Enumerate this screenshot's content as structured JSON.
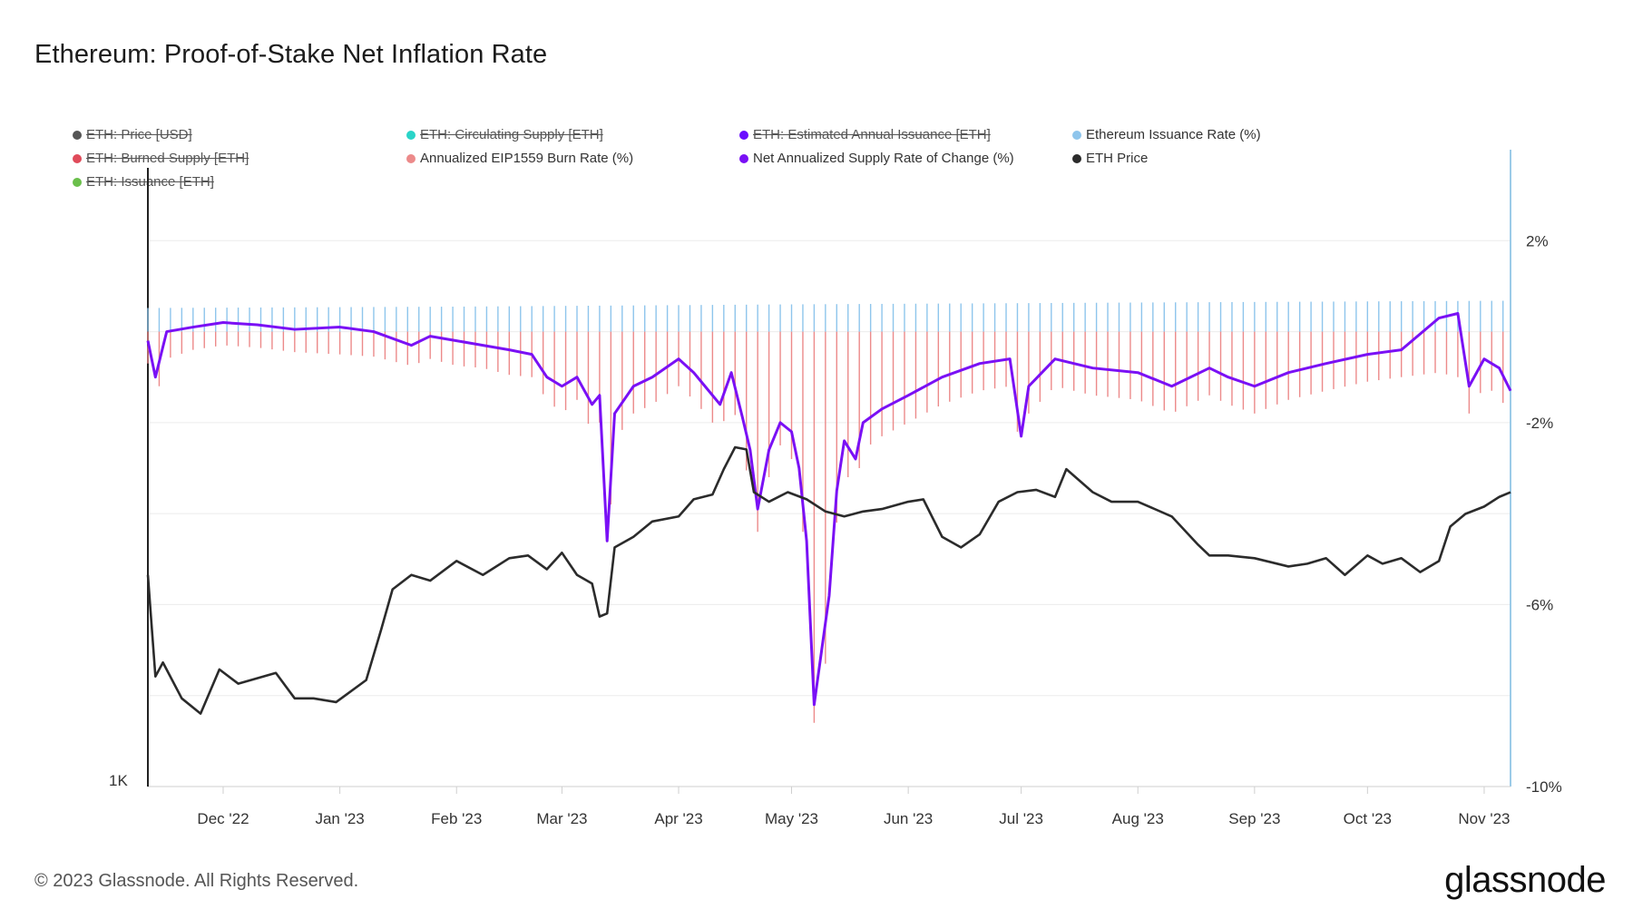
{
  "title": "Ethereum: Proof-of-Stake Net Inflation Rate",
  "footer": "© 2023 Glassnode. All Rights Reserved.",
  "brand": "glassnode",
  "legend": [
    {
      "label": "ETH: Price [USD]",
      "color": "#555555",
      "disabled": true
    },
    {
      "label": "ETH: Circulating Supply [ETH]",
      "color": "#2ad4c8",
      "disabled": true
    },
    {
      "label": "ETH: Estimated Annual Issuance [ETH]",
      "color": "#6a0dff",
      "disabled": true
    },
    {
      "label": "Ethereum Issuance Rate (%)",
      "color": "#8ec5ec",
      "disabled": false
    },
    {
      "label": "ETH: Burned Supply [ETH]",
      "color": "#e04b5a",
      "disabled": true
    },
    {
      "label": "Annualized EIP1559 Burn Rate (%)",
      "color": "#ec8a8a",
      "disabled": false
    },
    {
      "label": "Net Annualized Supply Rate of Change (%)",
      "color": "#7a10f5",
      "disabled": false
    },
    {
      "label": "ETH Price",
      "color": "#2b2b2b",
      "disabled": false
    },
    {
      "label": "ETH: Issuance [ETH]",
      "color": "#6abf4b",
      "disabled": true
    }
  ],
  "chart_data": {
    "type": "line",
    "x_tick_labels": [
      "Dec '22",
      "Jan '23",
      "Feb '23",
      "Mar '23",
      "Apr '23",
      "May '23",
      "Jun '23",
      "Jul '23",
      "Aug '23",
      "Sep '23",
      "Oct '23",
      "Nov '23"
    ],
    "x_range": [
      "2022-11-11",
      "2023-11-08"
    ],
    "y_right_tick_labels": [
      "2%",
      "-2%",
      "-6%",
      "-10%"
    ],
    "y_right_range": [
      -10,
      4
    ],
    "y_left_tick_labels": [
      "1K"
    ],
    "grid": true,
    "series": [
      {
        "name": "Ethereum Issuance Rate (%)",
        "type": "bar",
        "color": "#8ec5ec",
        "x": [
          "2022-11-11",
          "2023-02-01",
          "2023-05-01",
          "2023-08-01",
          "2023-11-08"
        ],
        "values": [
          0.52,
          0.55,
          0.6,
          0.64,
          0.68
        ]
      },
      {
        "name": "Annualized EIP1559 Burn Rate (%)",
        "type": "bar",
        "color": "#ec8a8a",
        "x": [
          "2022-11-11",
          "2022-11-13",
          "2022-11-16",
          "2022-11-23",
          "2022-12-01",
          "2022-12-10",
          "2022-12-20",
          "2023-01-01",
          "2023-01-10",
          "2023-01-20",
          "2023-01-25",
          "2023-02-01",
          "2023-02-08",
          "2023-02-15",
          "2023-02-21",
          "2023-02-25",
          "2023-03-01",
          "2023-03-05",
          "2023-03-09",
          "2023-03-11",
          "2023-03-13",
          "2023-03-15",
          "2023-03-20",
          "2023-03-25",
          "2023-04-01",
          "2023-04-05",
          "2023-04-08",
          "2023-04-12",
          "2023-04-15",
          "2023-04-18",
          "2023-04-20",
          "2023-04-22",
          "2023-04-25",
          "2023-04-28",
          "2023-05-01",
          "2023-05-03",
          "2023-05-05",
          "2023-05-07",
          "2023-05-09",
          "2023-05-11",
          "2023-05-13",
          "2023-05-15",
          "2023-05-18",
          "2023-05-20",
          "2023-05-25",
          "2023-06-01",
          "2023-06-10",
          "2023-06-20",
          "2023-06-28",
          "2023-07-01",
          "2023-07-03",
          "2023-07-10",
          "2023-07-20",
          "2023-08-01",
          "2023-08-10",
          "2023-08-20",
          "2023-08-25",
          "2023-09-01",
          "2023-09-10",
          "2023-09-20",
          "2023-10-01",
          "2023-10-10",
          "2023-10-20",
          "2023-10-25",
          "2023-10-28",
          "2023-11-01",
          "2023-11-05",
          "2023-11-08"
        ],
        "values": [
          -0.7,
          -1.5,
          -0.6,
          -0.4,
          -0.3,
          -0.35,
          -0.45,
          -0.5,
          -0.55,
          -0.75,
          -0.6,
          -0.75,
          -0.8,
          -0.95,
          -1.0,
          -1.5,
          -1.8,
          -1.5,
          -2.2,
          -2.0,
          -5.2,
          -2.4,
          -1.8,
          -1.6,
          -1.2,
          -1.5,
          -1.8,
          -2.2,
          -1.5,
          -2.5,
          -3.6,
          -4.4,
          -3.2,
          -2.5,
          -2.8,
          -3.5,
          -5.3,
          -8.6,
          -7.8,
          -6.8,
          -4.2,
          -3.1,
          -3.4,
          -2.6,
          -2.3,
          -2.0,
          -1.6,
          -1.3,
          -1.2,
          -2.7,
          -1.8,
          -1.2,
          -1.4,
          -1.5,
          -1.8,
          -1.4,
          -1.6,
          -1.8,
          -1.5,
          -1.3,
          -1.1,
          -1.0,
          -0.9,
          -1.0,
          -1.8,
          -1.2,
          -1.4,
          -1.9
        ]
      },
      {
        "name": "Net Annualized Supply Rate of Change (%)",
        "type": "line",
        "color": "#7a10f5",
        "x": [
          "2022-11-11",
          "2022-11-13",
          "2022-11-16",
          "2022-11-23",
          "2022-12-01",
          "2022-12-10",
          "2022-12-20",
          "2023-01-01",
          "2023-01-10",
          "2023-01-20",
          "2023-01-25",
          "2023-02-01",
          "2023-02-08",
          "2023-02-15",
          "2023-02-21",
          "2023-02-25",
          "2023-03-01",
          "2023-03-05",
          "2023-03-09",
          "2023-03-11",
          "2023-03-13",
          "2023-03-15",
          "2023-03-20",
          "2023-03-25",
          "2023-04-01",
          "2023-04-05",
          "2023-04-08",
          "2023-04-12",
          "2023-04-15",
          "2023-04-18",
          "2023-04-20",
          "2023-04-22",
          "2023-04-25",
          "2023-04-28",
          "2023-05-01",
          "2023-05-03",
          "2023-05-05",
          "2023-05-07",
          "2023-05-09",
          "2023-05-11",
          "2023-05-13",
          "2023-05-15",
          "2023-05-18",
          "2023-05-20",
          "2023-05-25",
          "2023-06-01",
          "2023-06-10",
          "2023-06-20",
          "2023-06-28",
          "2023-07-01",
          "2023-07-03",
          "2023-07-10",
          "2023-07-20",
          "2023-08-01",
          "2023-08-10",
          "2023-08-20",
          "2023-08-25",
          "2023-09-01",
          "2023-09-10",
          "2023-09-20",
          "2023-10-01",
          "2023-10-10",
          "2023-10-20",
          "2023-10-25",
          "2023-10-28",
          "2023-11-01",
          "2023-11-05",
          "2023-11-08"
        ],
        "values": [
          -0.2,
          -1.0,
          0.0,
          0.1,
          0.2,
          0.15,
          0.05,
          0.1,
          0.0,
          -0.3,
          -0.1,
          -0.2,
          -0.3,
          -0.4,
          -0.5,
          -1.0,
          -1.2,
          -1.0,
          -1.6,
          -1.4,
          -4.6,
          -1.8,
          -1.2,
          -1.0,
          -0.6,
          -0.9,
          -1.2,
          -1.6,
          -0.9,
          -1.9,
          -2.6,
          -3.9,
          -2.6,
          -2.0,
          -2.2,
          -3.0,
          -4.6,
          -8.2,
          -7.0,
          -5.8,
          -3.5,
          -2.4,
          -2.8,
          -2.0,
          -1.7,
          -1.4,
          -1.0,
          -0.7,
          -0.6,
          -2.3,
          -1.2,
          -0.6,
          -0.8,
          -0.9,
          -1.2,
          -0.8,
          -1.0,
          -1.2,
          -0.9,
          -0.7,
          -0.5,
          -0.4,
          0.3,
          0.4,
          -1.2,
          -0.6,
          -0.8,
          -1.3
        ]
      },
      {
        "name": "ETH Price",
        "type": "line",
        "color": "#2b2b2b",
        "axis": "left",
        "x": [
          "2022-11-11",
          "2022-11-13",
          "2022-11-15",
          "2022-11-20",
          "2022-11-25",
          "2022-11-30",
          "2022-12-05",
          "2022-12-15",
          "2022-12-20",
          "2022-12-25",
          "2022-12-31",
          "2023-01-08",
          "2023-01-12",
          "2023-01-15",
          "2023-01-20",
          "2023-01-25",
          "2023-02-01",
          "2023-02-08",
          "2023-02-15",
          "2023-02-20",
          "2023-02-25",
          "2023-03-01",
          "2023-03-05",
          "2023-03-09",
          "2023-03-11",
          "2023-03-13",
          "2023-03-15",
          "2023-03-20",
          "2023-03-25",
          "2023-04-01",
          "2023-04-05",
          "2023-04-10",
          "2023-04-13",
          "2023-04-16",
          "2023-04-19",
          "2023-04-21",
          "2023-04-25",
          "2023-04-30",
          "2023-05-05",
          "2023-05-10",
          "2023-05-15",
          "2023-05-20",
          "2023-05-25",
          "2023-06-01",
          "2023-06-05",
          "2023-06-10",
          "2023-06-15",
          "2023-06-20",
          "2023-06-25",
          "2023-06-30",
          "2023-07-05",
          "2023-07-10",
          "2023-07-13",
          "2023-07-20",
          "2023-07-25",
          "2023-08-01",
          "2023-08-10",
          "2023-08-17",
          "2023-08-20",
          "2023-08-25",
          "2023-09-01",
          "2023-09-10",
          "2023-09-15",
          "2023-09-20",
          "2023-09-25",
          "2023-10-01",
          "2023-10-05",
          "2023-10-10",
          "2023-10-15",
          "2023-10-20",
          "2023-10-23",
          "2023-10-27",
          "2023-11-01",
          "2023-11-05",
          "2023-11-08"
        ],
        "values": [
          1580,
          1260,
          1300,
          1200,
          1160,
          1280,
          1240,
          1270,
          1200,
          1200,
          1190,
          1250,
          1400,
          1530,
          1580,
          1560,
          1630,
          1580,
          1640,
          1650,
          1600,
          1660,
          1580,
          1550,
          1440,
          1450,
          1680,
          1720,
          1780,
          1800,
          1870,
          1890,
          2000,
          2100,
          2090,
          1900,
          1860,
          1900,
          1870,
          1820,
          1800,
          1820,
          1830,
          1860,
          1870,
          1720,
          1680,
          1730,
          1860,
          1900,
          1910,
          1880,
          2000,
          1900,
          1860,
          1860,
          1800,
          1690,
          1650,
          1650,
          1640,
          1610,
          1620,
          1640,
          1580,
          1650,
          1620,
          1640,
          1590,
          1630,
          1760,
          1810,
          1840,
          1880,
          1900
        ]
      }
    ]
  }
}
